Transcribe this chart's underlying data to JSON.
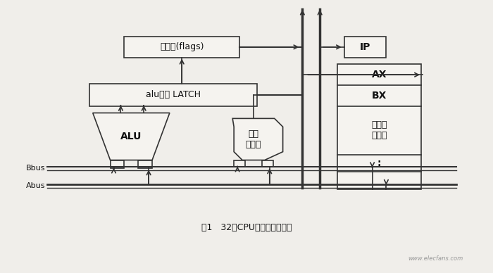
{
  "title": "图1   32位CPU执行单元结构图",
  "bg_color": "#f0eeea",
  "box_fill": "#f5f3ef",
  "ec": "#333333",
  "lw": 1.0,
  "flags_label": "标志位(flags)",
  "latch_label": "alu输出 LATCH",
  "ip_label": "IP",
  "ax_label": "AX",
  "bx_label": "BX",
  "gen_label": "通用寄\n存器组",
  "alu_label": "ALU",
  "shift_label": "移位\n寄存器",
  "bbus_label": "Bbus",
  "abus_label": "Abus",
  "caption": "图1   32位CPU执行单元结构图"
}
